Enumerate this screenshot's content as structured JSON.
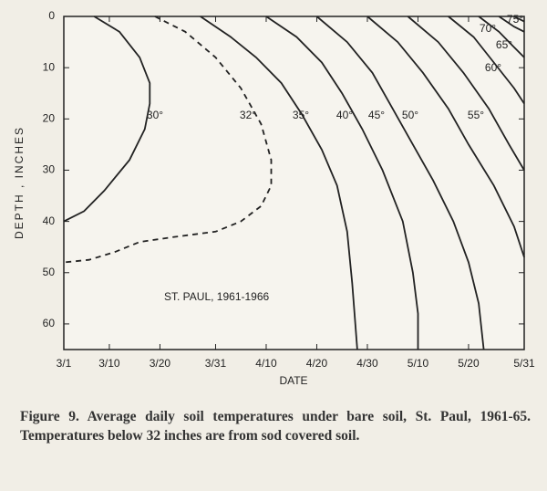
{
  "chart_data": {
    "type": "contour",
    "xlabel": "DATE",
    "ylabel": "DEPTH , INCHES",
    "annotation": "ST. PAUL, 1961-1966",
    "caption": "Figure 9. Average daily soil temperatures under bare soil, St. Paul, 1961-65. Temperatures below 32 inches are from sod covered soil.",
    "xlim": [
      0,
      91
    ],
    "xticks": [
      {
        "value": 0,
        "label": "3/1"
      },
      {
        "value": 9,
        "label": "3/10"
      },
      {
        "value": 19,
        "label": "3/20"
      },
      {
        "value": 30,
        "label": "3/31"
      },
      {
        "value": 40,
        "label": "4/10"
      },
      {
        "value": 50,
        "label": "4/20"
      },
      {
        "value": 60,
        "label": "4/30"
      },
      {
        "value": 70,
        "label": "5/10"
      },
      {
        "value": 80,
        "label": "5/20"
      },
      {
        "value": 91,
        "label": "5/31"
      }
    ],
    "ylim": [
      0,
      65
    ],
    "y_inverted": true,
    "yticks": [
      0,
      10,
      20,
      30,
      40,
      50,
      60
    ],
    "color": "#222",
    "series": [
      {
        "name": "30°",
        "x": [
          6,
          11,
          15,
          17,
          17,
          16,
          13,
          8,
          4,
          0
        ],
        "values": [
          0,
          3,
          8,
          13,
          17,
          22,
          28,
          34,
          38,
          40
        ]
      },
      {
        "name": "32°",
        "dashed": true,
        "x": [
          18,
          24,
          30,
          35,
          39,
          41,
          41,
          39,
          35,
          30,
          22,
          15,
          10,
          5,
          0
        ],
        "values": [
          0,
          3,
          8,
          14,
          21,
          28,
          33,
          37,
          40,
          42,
          43,
          44,
          46,
          47.5,
          48
        ]
      },
      {
        "name": "35°",
        "x": [
          27,
          33,
          38,
          43,
          47,
          51,
          54,
          56,
          57,
          58
        ],
        "values": [
          0,
          4,
          8,
          13,
          19,
          26,
          33,
          42,
          52,
          65
        ]
      },
      {
        "name": "40°",
        "x": [
          40,
          46,
          51,
          55,
          59,
          63,
          67,
          69,
          70,
          70
        ],
        "values": [
          0,
          4,
          9,
          15,
          22,
          30,
          40,
          50,
          58,
          65
        ]
      },
      {
        "name": "45°",
        "x": [
          50,
          56,
          61,
          65,
          69,
          73,
          77,
          80,
          82,
          83
        ],
        "values": [
          0,
          5,
          11,
          18,
          25,
          32,
          40,
          48,
          56,
          65
        ]
      },
      {
        "name": "50°",
        "x": [
          60,
          66,
          71,
          76,
          80,
          85,
          89,
          91
        ],
        "values": [
          0,
          5,
          11,
          18,
          25,
          33,
          41,
          47
        ]
      },
      {
        "name": "55°",
        "x": [
          68,
          74,
          79,
          84,
          88,
          91
        ],
        "values": [
          0,
          5,
          11,
          18,
          25,
          30
        ]
      },
      {
        "name": "60°",
        "x": [
          76,
          81,
          85,
          89,
          91
        ],
        "values": [
          0,
          4,
          9,
          14,
          17
        ]
      },
      {
        "name": "65°",
        "x": [
          82,
          86,
          89,
          91
        ],
        "values": [
          0,
          3,
          6,
          8
        ]
      },
      {
        "name": "70°",
        "x": [
          86,
          89,
          91
        ],
        "values": [
          0,
          2,
          3
        ]
      },
      {
        "name": "75°",
        "x": [
          89,
          91
        ],
        "values": [
          0,
          1
        ]
      }
    ]
  }
}
